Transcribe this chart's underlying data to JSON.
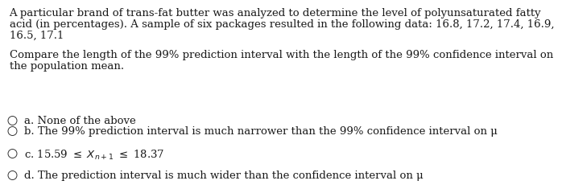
{
  "bg_color": "#ffffff",
  "text_color": "#1a1a1a",
  "paragraph1_line1": "A particular brand of trans-fat butter was analyzed to determine the level of polyunsaturated fatty",
  "paragraph1_line2": "acid (in percentages). A sample of six packages resulted in the following data: 16.8, 17.2, 17.4, 16.9,",
  "paragraph1_line3": "16.5, 17.1",
  "paragraph2_line1": "Compare the length of the 99% prediction interval with the length of the 99% confidence interval on",
  "paragraph2_line2": "the population mean.",
  "option_a": "a. None of the above",
  "option_b": "b. The 99% prediction interval is much narrower than the 99% confidence interval on μ",
  "option_c_math": "c. 15.59 ≤ $X_{n+1}$ ≤ 18.37",
  "option_d": "d. The prediction interval is much wider than the confidence interval on μ",
  "font_size": 9.5,
  "font_family": "DejaVu Serif"
}
